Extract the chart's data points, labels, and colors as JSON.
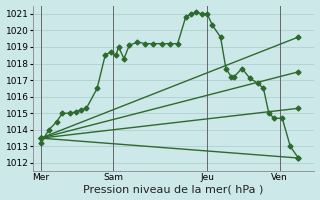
{
  "xlabel": "Pression niveau de la mer( hPa )",
  "bg_color": "#cce8e8",
  "grid_color": "#aacccc",
  "line_color": "#2d6a2d",
  "vline_color": "#666666",
  "ylim": [
    1011.5,
    1021.5
  ],
  "yticks": [
    1012,
    1013,
    1014,
    1015,
    1016,
    1017,
    1018,
    1019,
    1020,
    1021
  ],
  "xlim": [
    0,
    10.5
  ],
  "day_labels": [
    "Mer",
    "Sam",
    "Jeu",
    "Ven"
  ],
  "day_positions": [
    0.3,
    3.0,
    6.5,
    9.2
  ],
  "vlines": [
    0.3,
    3.0,
    6.5,
    9.2
  ],
  "detailed_line": [
    [
      0.3,
      1013.2
    ],
    [
      0.6,
      1014.0
    ],
    [
      0.9,
      1014.5
    ],
    [
      1.1,
      1015.0
    ],
    [
      1.4,
      1015.0
    ],
    [
      1.6,
      1015.1
    ],
    [
      1.8,
      1015.2
    ],
    [
      2.0,
      1015.3
    ],
    [
      2.4,
      1016.5
    ],
    [
      2.7,
      1018.5
    ],
    [
      2.9,
      1018.7
    ],
    [
      3.1,
      1018.5
    ],
    [
      3.2,
      1019.0
    ],
    [
      3.4,
      1018.3
    ],
    [
      3.6,
      1019.1
    ],
    [
      3.9,
      1019.3
    ],
    [
      4.2,
      1019.2
    ],
    [
      4.5,
      1019.2
    ],
    [
      4.8,
      1019.2
    ],
    [
      5.1,
      1019.2
    ],
    [
      5.4,
      1019.2
    ],
    [
      5.7,
      1020.8
    ],
    [
      5.9,
      1021.0
    ],
    [
      6.1,
      1021.1
    ],
    [
      6.3,
      1021.0
    ],
    [
      6.5,
      1021.0
    ],
    [
      6.7,
      1020.3
    ],
    [
      7.0,
      1019.6
    ],
    [
      7.2,
      1017.7
    ],
    [
      7.4,
      1017.2
    ],
    [
      7.5,
      1017.2
    ],
    [
      7.8,
      1017.7
    ],
    [
      8.1,
      1017.1
    ],
    [
      8.4,
      1016.8
    ],
    [
      8.6,
      1016.5
    ],
    [
      8.8,
      1015.0
    ],
    [
      9.0,
      1014.7
    ],
    [
      9.3,
      1014.7
    ],
    [
      9.6,
      1013.0
    ],
    [
      9.9,
      1012.3
    ]
  ],
  "forecast_lines": [
    [
      [
        0.3,
        1013.5
      ],
      [
        9.9,
        1019.6
      ]
    ],
    [
      [
        0.3,
        1013.5
      ],
      [
        9.9,
        1017.5
      ]
    ],
    [
      [
        0.3,
        1013.5
      ],
      [
        9.9,
        1015.3
      ]
    ],
    [
      [
        0.3,
        1013.5
      ],
      [
        9.9,
        1012.3
      ]
    ]
  ],
  "marker": "D",
  "markersize": 2.5,
  "linewidth": 1.0,
  "xlabel_fontsize": 8,
  "tick_fontsize": 6.5,
  "fig_width": 3.2,
  "fig_height": 2.0,
  "dpi": 100
}
